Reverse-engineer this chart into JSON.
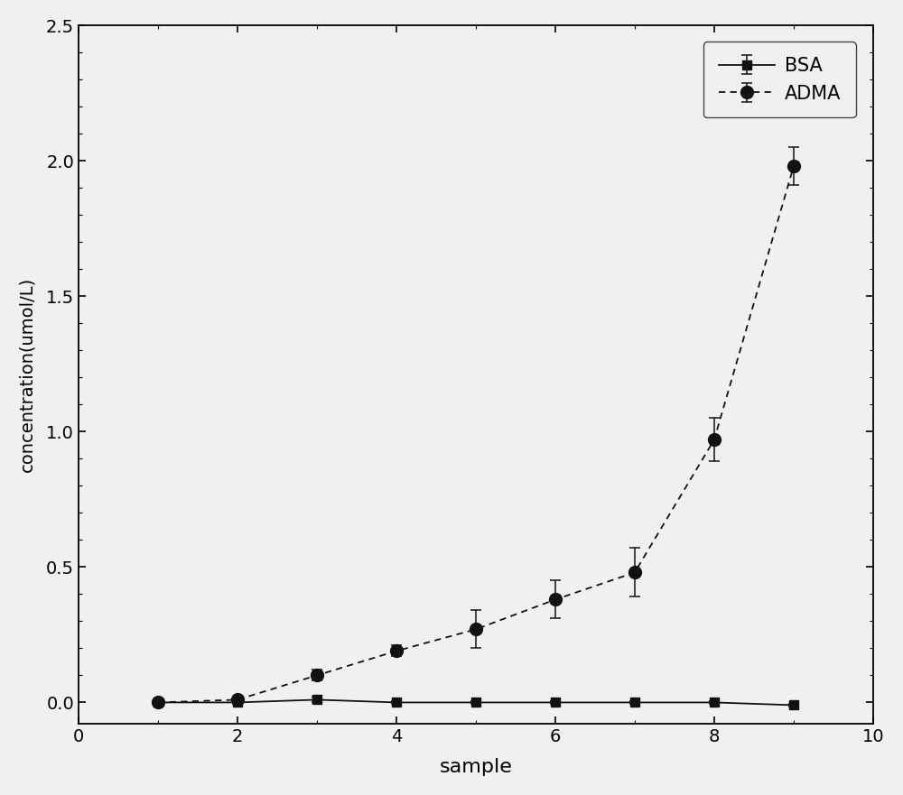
{
  "bsa_x": [
    1,
    2,
    3,
    4,
    5,
    6,
    7,
    8,
    9
  ],
  "bsa_y": [
    0.0,
    0.0,
    0.01,
    0.0,
    0.0,
    0.0,
    0.0,
    0.0,
    -0.01
  ],
  "bsa_yerr": [
    0.005,
    0.005,
    0.01,
    0.005,
    0.005,
    0.005,
    0.005,
    0.005,
    0.005
  ],
  "adma_x": [
    1,
    2,
    3,
    4,
    5,
    6,
    7,
    8,
    9
  ],
  "adma_y": [
    0.0,
    0.01,
    0.1,
    0.19,
    0.27,
    0.38,
    0.48,
    0.97,
    1.98
  ],
  "adma_yerr": [
    0.005,
    0.01,
    0.02,
    0.02,
    0.07,
    0.07,
    0.09,
    0.08,
    0.07
  ],
  "xlabel": "sample",
  "ylabel": "concentration(umol/L)",
  "xlim": [
    0,
    10
  ],
  "ylim": [
    -0.08,
    2.5
  ],
  "yticks": [
    0.0,
    0.5,
    1.0,
    1.5,
    2.0,
    2.5
  ],
  "xticks": [
    0,
    2,
    4,
    6,
    8,
    10
  ],
  "line_color": "#111111",
  "marker_bsa": "s",
  "marker_adma": "o",
  "legend_bsa": "BSA",
  "legend_adma": "ADMA",
  "background_color": "#f0f0f0",
  "figsize": [
    10.0,
    8.81
  ],
  "dpi": 100
}
